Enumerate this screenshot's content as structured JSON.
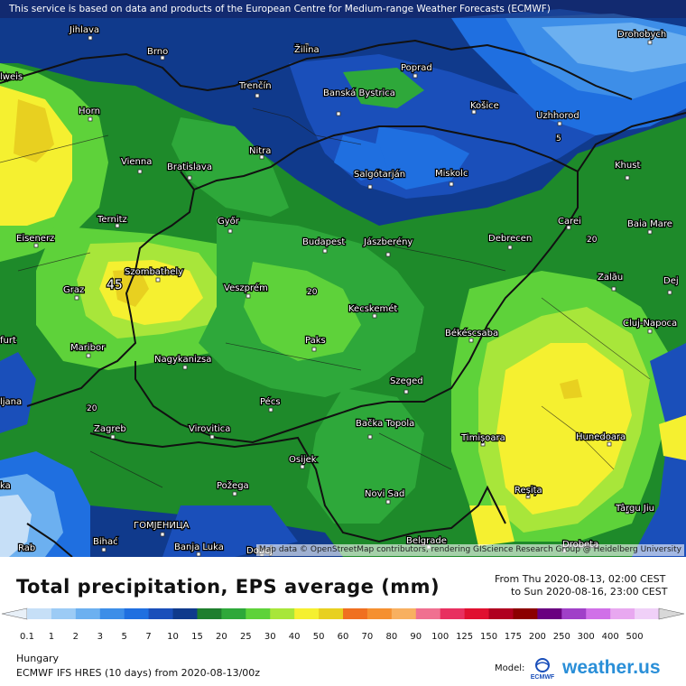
{
  "header": {
    "disclaimer": "This service is based on data and products of the European Centre for Medium-range Weather Forecasts (ECMWF)"
  },
  "map": {
    "attribution": "Map data © OpenStreetMap contributors, rendering GIScience Research Group @ Heidelberg University",
    "cities": [
      "Jihlava",
      "Brno",
      "Žilina",
      "Poprad",
      "Drohobych",
      "Horn",
      "Trenčín",
      "Banská Bystrica",
      "Košice",
      "Uzhhorod",
      "Vienna",
      "Bratislava",
      "Nitra",
      "Salgótarján",
      "Miskolc",
      "Khust",
      "Ternitz",
      "Győr",
      "Carei",
      "Baia Mare",
      "Eisenerz",
      "Budapest",
      "Jászberény",
      "Debrecen",
      "Szombathely",
      "Zalău",
      "Graz",
      "Veszprém",
      "Kecskemét",
      "Cluj-Napoca",
      "Maribor",
      "Paks",
      "Békéscsaba",
      "Nagykanizsa",
      "Szeged",
      "Pécs",
      "Zagreb",
      "Virovitica",
      "Bačka Topola",
      "Timișoara",
      "Hunedoara",
      "Osijek",
      "Požega",
      "Novi Sad",
      "Reșița",
      "Târgu Jiu",
      "ГОМЈЕНИЦА",
      "Bihać",
      "Banja Luka",
      "Doboj",
      "Belgrade",
      "Drobeta",
      "Dej",
      "Rab",
      "lweis",
      "furt",
      "ljana",
      "ka"
    ],
    "contour_labels": [
      "45",
      "5",
      "20",
      "20",
      "20"
    ]
  },
  "title": {
    "main": "Total precipitation, EPS average (mm)",
    "from": "From Thu 2020-08-13, 02:00 CEST",
    "to": "to Sun 2020-08-16, 23:00 CEST"
  },
  "legend": {
    "labels": [
      "0.1",
      "1",
      "2",
      "3",
      "5",
      "7",
      "10",
      "15",
      "20",
      "25",
      "30",
      "40",
      "50",
      "60",
      "70",
      "80",
      "90",
      "100",
      "125",
      "150",
      "175",
      "200",
      "250",
      "300",
      "400",
      "500"
    ],
    "colors": [
      "#e8f0f8",
      "#c6dff7",
      "#9ccbf5",
      "#6cb0f0",
      "#3d8ee8",
      "#1f6fe0",
      "#1a4fba",
      "#0f3a8c",
      "#1e7e2e",
      "#2ea83a",
      "#5ed23a",
      "#a8e63a",
      "#f5f030",
      "#e8d020",
      "#f07020",
      "#f59030",
      "#f8b060",
      "#f07090",
      "#e83060",
      "#e01030",
      "#b00020",
      "#8c0000",
      "#6a0080",
      "#a040c8",
      "#d070e8",
      "#e8a8f0",
      "#f0d0f8",
      "#d8d8d8"
    ]
  },
  "footer": {
    "region": "Hungary",
    "model": "ECMWF IFS HRES (10 days) from  2020-08-13/00z",
    "model_label": "Model:",
    "ecmwf": "ECMWF",
    "brand": "weather.us"
  }
}
